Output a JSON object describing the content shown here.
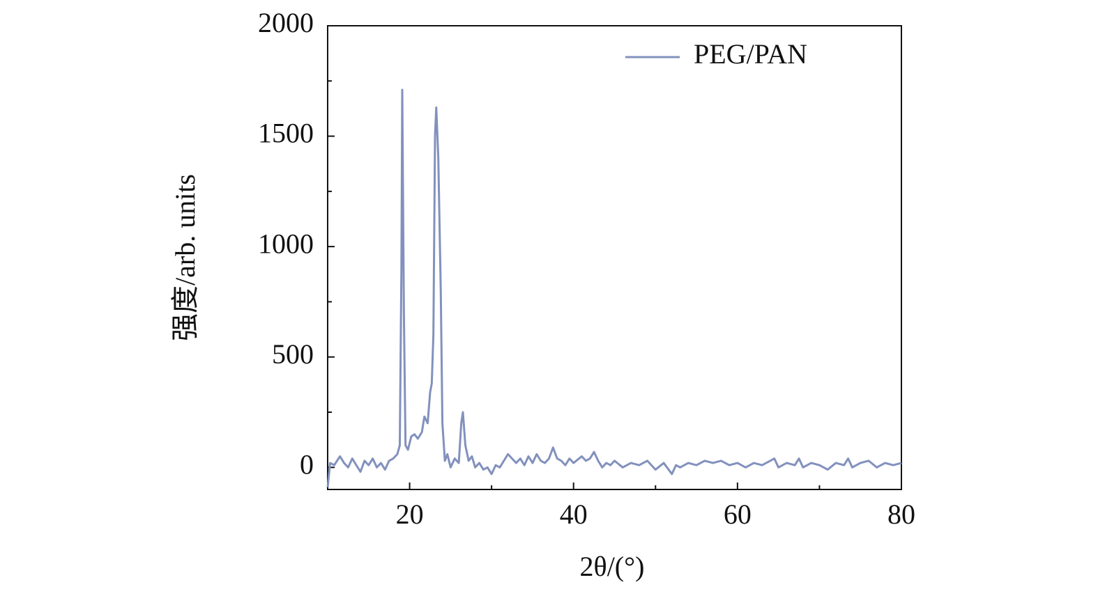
{
  "chart_data": {
    "type": "line",
    "x_label": "2θ/(°)",
    "y_label": "强度/arb. units",
    "xlim": [
      10,
      80
    ],
    "ylim": [
      -100,
      2000
    ],
    "xticks": [
      20,
      40,
      60,
      80
    ],
    "yticks": [
      0,
      500,
      1000,
      1500,
      2000
    ],
    "xminorticks": [
      10,
      30,
      50,
      70
    ],
    "yminorticks": [
      250,
      750,
      1250,
      1750
    ],
    "legend": "upper right",
    "series": [
      {
        "name": "PEG/PAN",
        "color": "#8291bd",
        "x": [
          10,
          10.3,
          10.8,
          11.5,
          12,
          12.5,
          13,
          13.5,
          14,
          14.5,
          15,
          15.5,
          16,
          16.5,
          17,
          17.5,
          18,
          18.5,
          18.8,
          19.0,
          19.1,
          19.3,
          19.5,
          19.8,
          20.2,
          20.6,
          21,
          21.5,
          21.8,
          22.2,
          22.5,
          22.7,
          22.9,
          23.1,
          23.25,
          23.5,
          23.8,
          24,
          24.3,
          24.6,
          25,
          25.5,
          26,
          26.3,
          26.5,
          26.8,
          27.2,
          27.6,
          28,
          28.5,
          29,
          29.5,
          30,
          30.5,
          31,
          31.5,
          32,
          32.5,
          33,
          33.5,
          34,
          34.5,
          35,
          35.5,
          36,
          36.5,
          37,
          37.5,
          38,
          38.5,
          39,
          39.5,
          40,
          41,
          41.5,
          42,
          42.5,
          43,
          43.5,
          44,
          44.5,
          45,
          46,
          47,
          48,
          49,
          50,
          51,
          52,
          52.5,
          53,
          54,
          55,
          56,
          57,
          58,
          59,
          60,
          61,
          62,
          63,
          64,
          64.5,
          65,
          66,
          67,
          67.5,
          68,
          69,
          70,
          71,
          72,
          73,
          73.5,
          74,
          75,
          76,
          77,
          78,
          79,
          80
        ],
        "values": [
          -90,
          20,
          10,
          50,
          20,
          0,
          40,
          10,
          -20,
          30,
          10,
          40,
          0,
          20,
          -10,
          30,
          40,
          60,
          100,
          900,
          1710,
          700,
          100,
          80,
          140,
          150,
          130,
          160,
          230,
          200,
          340,
          380,
          600,
          1500,
          1630,
          1400,
          800,
          200,
          30,
          60,
          0,
          40,
          20,
          200,
          250,
          100,
          30,
          50,
          0,
          20,
          -10,
          0,
          -30,
          10,
          0,
          30,
          60,
          40,
          20,
          40,
          10,
          50,
          20,
          60,
          30,
          20,
          40,
          90,
          40,
          30,
          10,
          40,
          20,
          50,
          30,
          40,
          70,
          30,
          0,
          20,
          10,
          30,
          0,
          20,
          10,
          30,
          -10,
          20,
          -30,
          10,
          0,
          20,
          10,
          30,
          20,
          30,
          10,
          20,
          0,
          20,
          10,
          30,
          40,
          0,
          20,
          10,
          40,
          0,
          20,
          10,
          -10,
          20,
          10,
          40,
          0,
          20,
          30,
          0,
          20,
          10,
          20
        ]
      }
    ]
  }
}
